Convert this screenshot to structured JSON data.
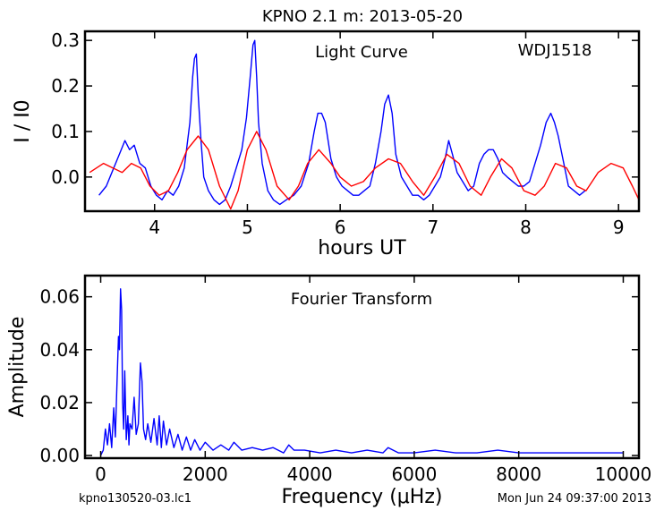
{
  "figure": {
    "title": "KPNO 2.1 m:  2013-05-20",
    "footer_left": "kpno130520-03.lc1",
    "footer_right": "Mon Jun 24 09:37:00 2013"
  },
  "chart_data": [
    {
      "type": "line",
      "title": "Light Curve",
      "annotation": "WDJ1518",
      "xlabel": "hours UT",
      "ylabel": "I / I0",
      "xlim": [
        3.25,
        9.22
      ],
      "ylim": [
        -0.075,
        0.32
      ],
      "xticks": [
        4,
        5,
        6,
        7,
        8,
        9
      ],
      "yticks": [
        0.0,
        0.1,
        0.2,
        0.3
      ],
      "ytick_labels": [
        "0.0",
        "0.1",
        "0.2",
        "0.3"
      ],
      "grid": false,
      "series": [
        {
          "color": "#0000ff",
          "x": [
            3.4,
            3.48,
            3.56,
            3.62,
            3.68,
            3.73,
            3.78,
            3.84,
            3.9,
            3.96,
            4.02,
            4.08,
            4.14,
            4.2,
            4.26,
            4.32,
            4.38,
            4.41,
            4.43,
            4.45,
            4.47,
            4.5,
            4.53,
            4.58,
            4.64,
            4.7,
            4.76,
            4.82,
            4.88,
            4.94,
            4.99,
            5.03,
            5.06,
            5.08,
            5.1,
            5.12,
            5.16,
            5.22,
            5.28,
            5.35,
            5.42,
            5.5,
            5.58,
            5.66,
            5.72,
            5.76,
            5.8,
            5.84,
            5.9,
            5.96,
            6.02,
            6.08,
            6.14,
            6.2,
            6.26,
            6.32,
            6.38,
            6.44,
            6.48,
            6.52,
            6.56,
            6.6,
            6.66,
            6.72,
            6.78,
            6.84,
            6.9,
            6.96,
            7.02,
            7.08,
            7.13,
            7.17,
            7.21,
            7.26,
            7.32,
            7.38,
            7.44,
            7.5,
            7.55,
            7.6,
            7.65,
            7.7,
            7.75,
            7.8,
            7.86,
            7.92,
            7.98,
            8.04,
            8.1,
            8.16,
            8.22,
            8.27,
            8.31,
            8.35,
            8.4,
            8.46,
            8.52,
            8.58,
            8.64
          ],
          "y": [
            -0.04,
            -0.02,
            0.02,
            0.05,
            0.08,
            0.06,
            0.07,
            0.03,
            0.02,
            -0.02,
            -0.04,
            -0.05,
            -0.03,
            -0.04,
            -0.02,
            0.02,
            0.12,
            0.22,
            0.26,
            0.27,
            0.18,
            0.08,
            0.0,
            -0.03,
            -0.05,
            -0.06,
            -0.05,
            -0.02,
            0.02,
            0.06,
            0.13,
            0.22,
            0.29,
            0.3,
            0.22,
            0.12,
            0.03,
            -0.03,
            -0.05,
            -0.06,
            -0.05,
            -0.04,
            -0.02,
            0.03,
            0.1,
            0.14,
            0.14,
            0.12,
            0.04,
            0.0,
            -0.02,
            -0.03,
            -0.04,
            -0.04,
            -0.03,
            -0.02,
            0.03,
            0.1,
            0.16,
            0.18,
            0.14,
            0.05,
            0.0,
            -0.02,
            -0.04,
            -0.04,
            -0.05,
            -0.04,
            -0.02,
            0.0,
            0.04,
            0.08,
            0.05,
            0.01,
            -0.01,
            -0.03,
            -0.02,
            0.03,
            0.05,
            0.06,
            0.06,
            0.04,
            0.01,
            0.0,
            -0.01,
            -0.02,
            -0.02,
            -0.01,
            0.03,
            0.07,
            0.12,
            0.14,
            0.12,
            0.09,
            0.04,
            -0.02,
            -0.03,
            -0.04,
            -0.03
          ]
        },
        {
          "color": "#ff0000",
          "x": [
            3.3,
            3.45,
            3.55,
            3.65,
            3.75,
            3.85,
            3.95,
            4.05,
            4.15,
            4.25,
            4.35,
            4.47,
            4.58,
            4.7,
            4.82,
            4.9,
            5.0,
            5.1,
            5.2,
            5.32,
            5.45,
            5.55,
            5.65,
            5.77,
            5.9,
            6.0,
            6.12,
            6.25,
            6.38,
            6.52,
            6.65,
            6.78,
            6.9,
            7.02,
            7.15,
            7.28,
            7.4,
            7.52,
            7.62,
            7.74,
            7.85,
            7.98,
            8.1,
            8.2,
            8.32,
            8.44,
            8.55,
            8.65,
            8.78,
            8.92,
            9.05,
            9.15,
            9.22
          ],
          "y": [
            0.01,
            0.03,
            0.02,
            0.01,
            0.03,
            0.02,
            -0.02,
            -0.04,
            -0.03,
            0.01,
            0.06,
            0.09,
            0.06,
            -0.02,
            -0.07,
            -0.03,
            0.06,
            0.1,
            0.06,
            -0.02,
            -0.05,
            -0.02,
            0.03,
            0.06,
            0.03,
            0.0,
            -0.02,
            -0.01,
            0.02,
            0.04,
            0.03,
            -0.01,
            -0.04,
            0.0,
            0.05,
            0.03,
            -0.02,
            -0.04,
            0.0,
            0.04,
            0.02,
            -0.03,
            -0.04,
            -0.02,
            0.03,
            0.02,
            -0.02,
            -0.03,
            0.01,
            0.03,
            0.02,
            -0.02,
            -0.05
          ]
        }
      ]
    },
    {
      "type": "line",
      "title": "Fourier Transform",
      "xlabel": "Frequency (μHz)",
      "ylabel": "Amplitude",
      "xlim": [
        -300,
        10300
      ],
      "ylim": [
        -0.001,
        0.068
      ],
      "xticks": [
        0,
        2000,
        4000,
        6000,
        8000,
        10000
      ],
      "yticks": [
        0.0,
        0.02,
        0.04,
        0.06
      ],
      "ytick_labels": [
        "0.00",
        "0.02",
        "0.04",
        "0.06"
      ],
      "grid": false,
      "series": [
        {
          "color": "#0000ff",
          "x": [
            0,
            50,
            90,
            130,
            170,
            210,
            250,
            280,
            310,
            340,
            360,
            380,
            400,
            420,
            440,
            460,
            490,
            520,
            540,
            560,
            600,
            640,
            680,
            720,
            760,
            790,
            820,
            860,
            900,
            960,
            1020,
            1080,
            1120,
            1160,
            1200,
            1260,
            1320,
            1400,
            1480,
            1560,
            1640,
            1720,
            1800,
            1900,
            2000,
            2150,
            2300,
            2450,
            2550,
            2700,
            2900,
            3100,
            3300,
            3500,
            3600,
            3700,
            3900,
            4200,
            4500,
            4800,
            5100,
            5400,
            5500,
            5700,
            6000,
            6400,
            6800,
            7200,
            7600,
            8000,
            8400,
            8800,
            9200,
            9600,
            10000
          ],
          "y": [
            0.0,
            0.002,
            0.01,
            0.004,
            0.012,
            0.003,
            0.018,
            0.007,
            0.026,
            0.045,
            0.04,
            0.063,
            0.055,
            0.02,
            0.01,
            0.032,
            0.006,
            0.015,
            0.004,
            0.012,
            0.01,
            0.022,
            0.008,
            0.012,
            0.035,
            0.028,
            0.01,
            0.006,
            0.012,
            0.005,
            0.014,
            0.004,
            0.015,
            0.003,
            0.013,
            0.004,
            0.01,
            0.003,
            0.008,
            0.002,
            0.007,
            0.002,
            0.006,
            0.002,
            0.005,
            0.002,
            0.004,
            0.002,
            0.005,
            0.002,
            0.003,
            0.002,
            0.003,
            0.001,
            0.004,
            0.002,
            0.002,
            0.001,
            0.002,
            0.001,
            0.002,
            0.001,
            0.003,
            0.001,
            0.001,
            0.002,
            0.001,
            0.001,
            0.002,
            0.001,
            0.001,
            0.001,
            0.001,
            0.001,
            0.001
          ]
        }
      ]
    }
  ]
}
